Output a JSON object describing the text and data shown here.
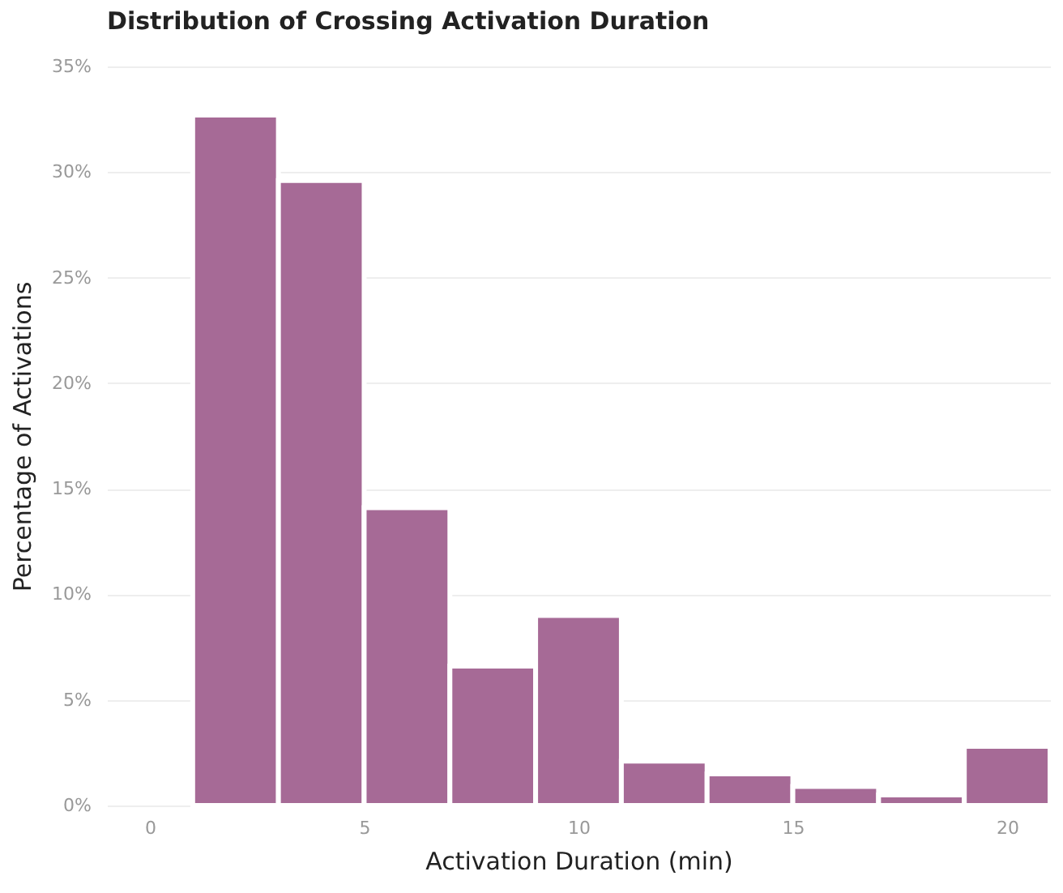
{
  "chart_data": {
    "type": "histogram",
    "title": "Distribution of Crossing Activation Duration",
    "xlabel": "Activation Duration (min)",
    "ylabel": "Percentage of Activations",
    "bins": [
      1,
      3,
      5,
      7,
      9,
      11,
      13,
      15,
      17,
      19,
      21
    ],
    "values": [
      32.7,
      29.6,
      14.1,
      6.6,
      9.0,
      2.1,
      1.5,
      0.9,
      0.5,
      2.8
    ],
    "color": "#a66a96",
    "xlim": [
      -1,
      21
    ],
    "xticks": [
      0,
      5,
      10,
      15,
      20
    ],
    "ylim": [
      0,
      35
    ],
    "yticks": [
      {
        "value": 0,
        "label": "0%"
      },
      {
        "value": 5,
        "label": "5%"
      },
      {
        "value": 10,
        "label": "10%"
      },
      {
        "value": 15,
        "label": "15%"
      },
      {
        "value": 20,
        "label": "20%"
      },
      {
        "value": 25,
        "label": "25%"
      },
      {
        "value": 30,
        "label": "30%"
      },
      {
        "value": 35,
        "label": "35%"
      }
    ],
    "grid": "y"
  }
}
